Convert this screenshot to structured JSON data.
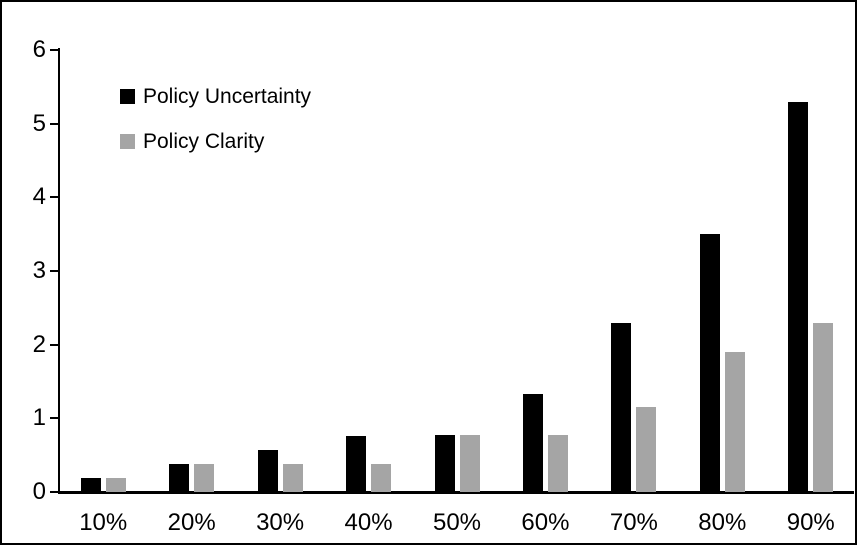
{
  "chart_data": {
    "type": "bar",
    "title": "",
    "xlabel": "",
    "ylabel": "",
    "categories": [
      "10%",
      "20%",
      "30%",
      "40%",
      "50%",
      "60%",
      "70%",
      "80%",
      "90%"
    ],
    "series": [
      {
        "name": "Policy Uncertainty",
        "color": "#000000",
        "values": [
          0.19,
          0.38,
          0.57,
          0.76,
          0.77,
          1.33,
          2.3,
          3.5,
          5.3
        ]
      },
      {
        "name": "Policy Clarity",
        "color": "#a5a5a5",
        "values": [
          0.19,
          0.38,
          0.38,
          0.38,
          0.77,
          0.77,
          1.15,
          1.9,
          2.3
        ]
      }
    ],
    "ylim": [
      0,
      6
    ],
    "yticks": [
      0,
      1,
      2,
      3,
      4,
      5,
      6
    ],
    "grid": false,
    "legend_position": "upper-left-inside",
    "axis_color": "#000000",
    "background": "#ffffff"
  }
}
